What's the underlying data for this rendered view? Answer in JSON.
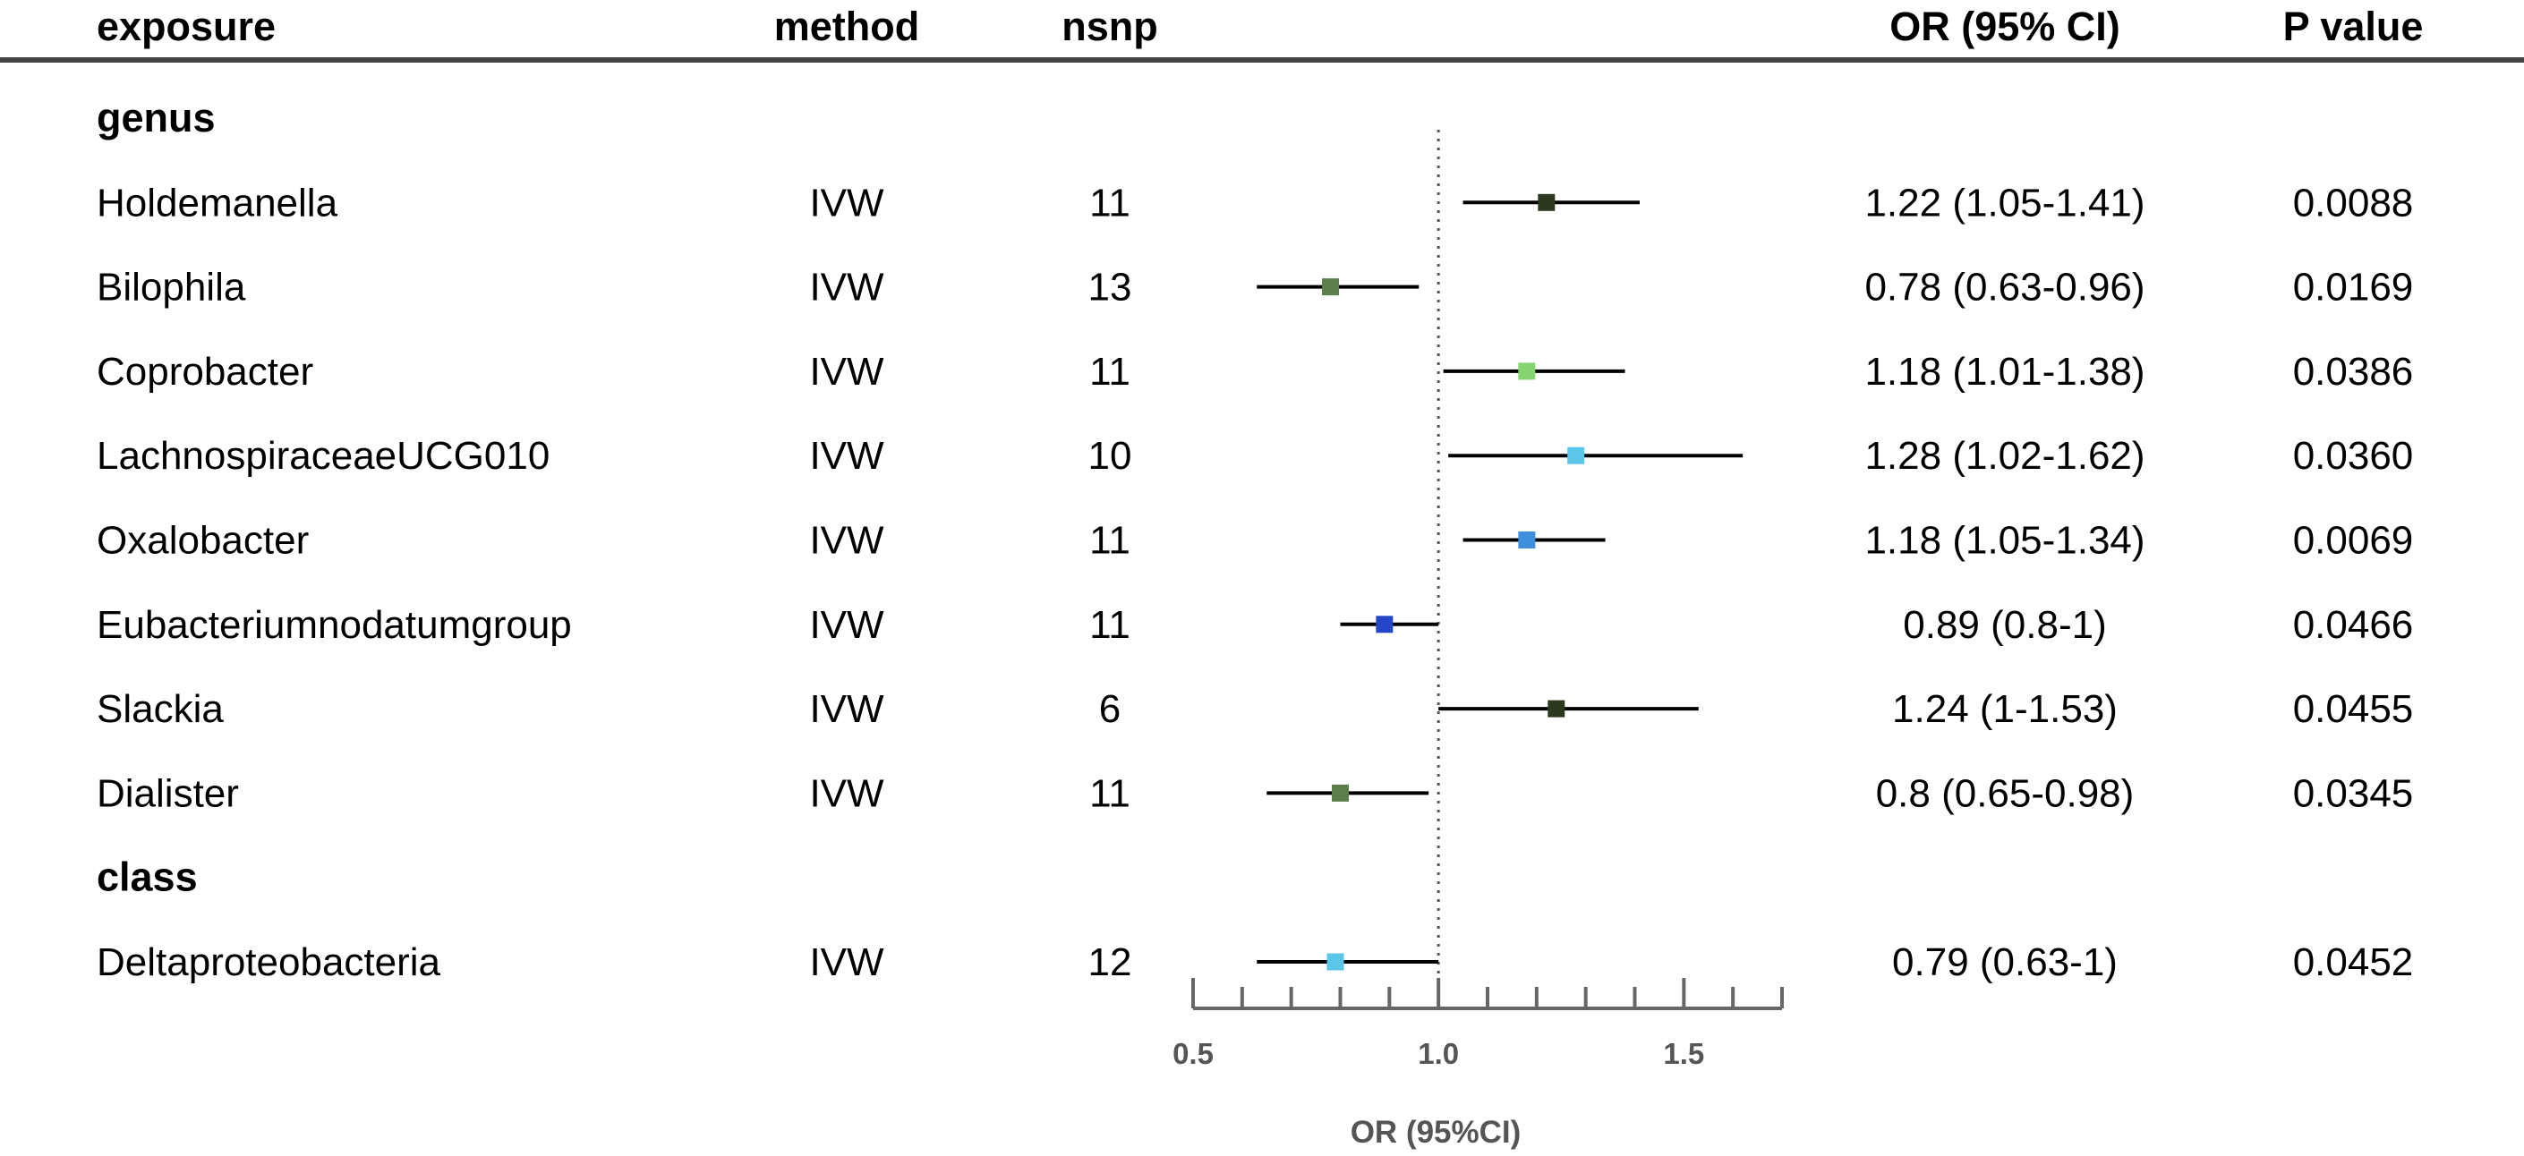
{
  "table": {
    "headers": {
      "exposure": "exposure",
      "method": "method",
      "nsnp": "nsnp",
      "or": "OR (95% CI)",
      "p": "P value"
    }
  },
  "chart_data": {
    "type": "forest",
    "xlabel": "OR (95%CI)",
    "xlim": [
      0.5,
      1.7
    ],
    "reference_line": 1.0,
    "ticks": [
      {
        "value": 0.5,
        "label": "0.5"
      },
      {
        "value": 1.0,
        "label": "1.0"
      },
      {
        "value": 1.5,
        "label": "1.5"
      }
    ],
    "minor_ticks": [
      0.6,
      0.7,
      0.8,
      0.9,
      1.1,
      1.2,
      1.3,
      1.4,
      1.6,
      1.7
    ],
    "rows": [
      {
        "kind": "group",
        "label": "genus"
      },
      {
        "kind": "item",
        "exposure": "Holdemanella",
        "method": "IVW",
        "nsnp": "11",
        "or": 1.22,
        "lo": 1.05,
        "hi": 1.41,
        "or_text": "1.22 (1.05-1.41)",
        "p": "0.0088",
        "color": "#2b3a1e"
      },
      {
        "kind": "item",
        "exposure": "Bilophila",
        "method": "IVW",
        "nsnp": "13",
        "or": 0.78,
        "lo": 0.63,
        "hi": 0.96,
        "or_text": "0.78 (0.63-0.96)",
        "p": "0.0169",
        "color": "#5a7f4a"
      },
      {
        "kind": "item",
        "exposure": "Coprobacter",
        "method": "IVW",
        "nsnp": "11",
        "or": 1.18,
        "lo": 1.01,
        "hi": 1.38,
        "or_text": "1.18 (1.01-1.38)",
        "p": "0.0386",
        "color": "#86d46f"
      },
      {
        "kind": "item",
        "exposure": "LachnospiraceaeUCG010",
        "method": "IVW",
        "nsnp": "10",
        "or": 1.28,
        "lo": 1.02,
        "hi": 1.62,
        "or_text": "1.28 (1.02-1.62)",
        "p": "0.0360",
        "color": "#5bc7e8"
      },
      {
        "kind": "item",
        "exposure": "Oxalobacter",
        "method": "IVW",
        "nsnp": "11",
        "or": 1.18,
        "lo": 1.05,
        "hi": 1.34,
        "or_text": "1.18 (1.05-1.34)",
        "p": "0.0069",
        "color": "#3d8fdc"
      },
      {
        "kind": "item",
        "exposure": "Eubacteriumnodatumgroup",
        "method": "IVW",
        "nsnp": "11",
        "or": 0.89,
        "lo": 0.8,
        "hi": 1.0,
        "or_text": "0.89 (0.8-1)",
        "p": "0.0466",
        "color": "#2447c9"
      },
      {
        "kind": "item",
        "exposure": "Slackia",
        "method": "IVW",
        "nsnp": "6",
        "or": 1.24,
        "lo": 1.0,
        "hi": 1.53,
        "or_text": "1.24 (1-1.53)",
        "p": "0.0455",
        "color": "#2b3a1e"
      },
      {
        "kind": "item",
        "exposure": "Dialister",
        "method": "IVW",
        "nsnp": "11",
        "or": 0.8,
        "lo": 0.65,
        "hi": 0.98,
        "or_text": "0.8 (0.65-0.98)",
        "p": "0.0345",
        "color": "#5a7f4a"
      },
      {
        "kind": "group",
        "label": "class"
      },
      {
        "kind": "item",
        "exposure": "Deltaproteobacteria",
        "method": "IVW",
        "nsnp": "12",
        "or": 0.79,
        "lo": 0.63,
        "hi": 1.0,
        "or_text": "0.79 (0.63-1)",
        "p": "0.0452",
        "color": "#5bc7e8"
      }
    ]
  }
}
